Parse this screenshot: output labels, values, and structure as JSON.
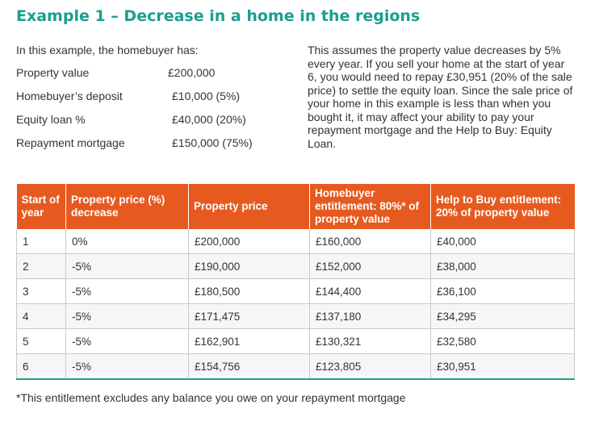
{
  "title": "Example 1 – Decrease in a home in the regions",
  "intro": "In this example, the homebuyer has:",
  "details": [
    {
      "label": "Property value",
      "value": "£200,000"
    },
    {
      "label": "Homebuyer’s deposit",
      "value": "£10,000 (5%)"
    },
    {
      "label": "Equity loan %",
      "value": "£40,000 (20%)"
    },
    {
      "label": "Repayment mortgage",
      "value": "£150,000 (75%)"
    }
  ],
  "explanation": "This assumes the property value decreases by 5% every year. If you sell your home at the start of year 6, you would need to repay £30,951 (20% of the sale price) to settle the equity loan. Since the sale price of your home in this example is less than when you bought it, it may affect your ability to pay your repayment mortgage and the Help to Buy: Equity Loan.",
  "table": {
    "headers": [
      "Start of year",
      "Property price (%) decrease",
      "Property price",
      "Homebuyer entitlement: 80%* of property value",
      "Help to Buy entitlement: 20% of property value"
    ],
    "rows": [
      [
        "1",
        "0%",
        "£200,000",
        "£160,000",
        "£40,000"
      ],
      [
        "2",
        "-5%",
        "£190,000",
        "£152,000",
        "£38,000"
      ],
      [
        "3",
        "-5%",
        "£180,500",
        "£144,400",
        "£36,100"
      ],
      [
        "4",
        "-5%",
        "£171,475",
        "£137,180",
        "£34,295"
      ],
      [
        "5",
        "-5%",
        "£162,901",
        "£130,321",
        "£32,580"
      ],
      [
        "6",
        "-5%",
        "£154,756",
        "£123,805",
        "£30,951"
      ]
    ]
  },
  "footnote": "*This entitlement excludes any balance you owe on your repayment mortgage",
  "colors": {
    "title": "#1a9e8f",
    "header": "#e75a1f",
    "rule": "#1a9e8f"
  }
}
